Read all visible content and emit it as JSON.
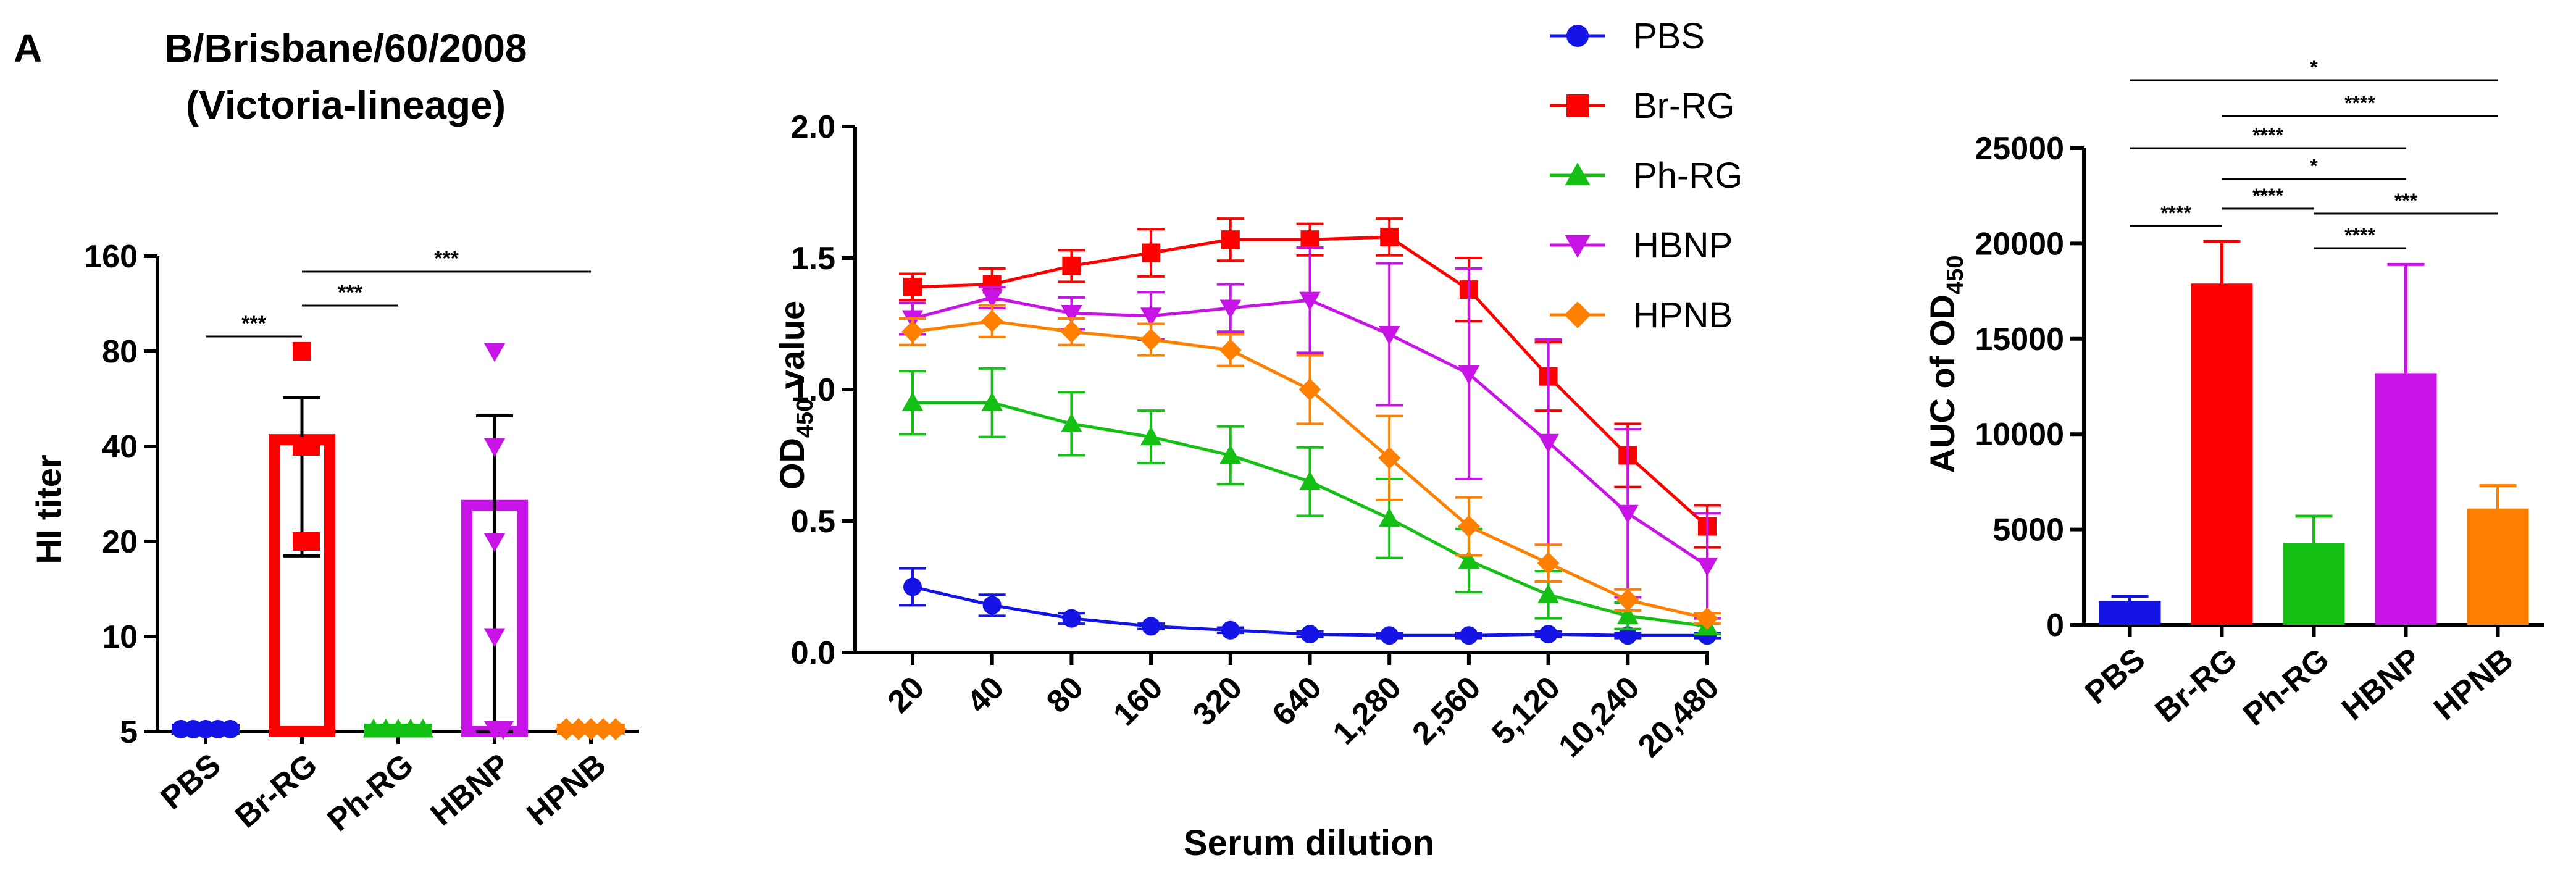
{
  "figure": {
    "panel_label": "A",
    "title_line1": "B/Brisbane/60/2008",
    "title_line2": "(Victoria-lineage)"
  },
  "groups": [
    "PBS",
    "Br-RG",
    "Ph-RG",
    "HBNP",
    "HPNB"
  ],
  "colors": {
    "PBS": "#1414e6",
    "Br-RG": "#ff0000",
    "Ph-RG": "#13c013",
    "HBNP": "#c814e6",
    "HPNB": "#ff8000"
  },
  "chart_data": [
    {
      "id": "hi-titer",
      "type": "bar",
      "ylabel": "HI titer",
      "yscale": "log2",
      "ylim": [
        5,
        160
      ],
      "yticks": [
        5,
        10,
        20,
        40,
        80,
        160
      ],
      "categories": [
        "PBS",
        "Br-RG",
        "Ph-RG",
        "HBNP",
        "HPNB"
      ],
      "values": [
        5,
        42,
        5,
        26,
        5
      ],
      "error_upper": [
        5,
        57,
        5,
        50,
        5
      ],
      "error_lower": [
        5,
        18,
        5,
        5,
        5
      ],
      "markers": [
        "circle",
        "square",
        "triangle-up",
        "triangle-down",
        "diamond"
      ],
      "points": [
        [
          5,
          5,
          5,
          5,
          5
        ],
        [
          80,
          40,
          40,
          20,
          20
        ],
        [
          5,
          5,
          5,
          5,
          5
        ],
        [
          80,
          40,
          20,
          10,
          5,
          5
        ],
        [
          5,
          5,
          5,
          5,
          5
        ]
      ],
      "significance": [
        {
          "from": "PBS",
          "to": "Br-RG",
          "label": "***"
        },
        {
          "from": "Br-RG",
          "to": "Ph-RG",
          "label": "***"
        },
        {
          "from": "Br-RG",
          "to": "HPNB",
          "label": "***"
        }
      ]
    },
    {
      "id": "od450-curve",
      "type": "line",
      "xlabel": "Serum dilution",
      "ylabel_main": "OD",
      "ylabel_sub": "450",
      "ylabel_suffix": " value",
      "ylim": [
        0,
        2
      ],
      "yticks": [
        "0.0",
        "0.5",
        "1.0",
        "1.5",
        "2.0"
      ],
      "categories": [
        "20",
        "40",
        "80",
        "160",
        "320",
        "640",
        "1,280",
        "2,560",
        "5,120",
        "10,240",
        "20,480"
      ],
      "series": [
        {
          "name": "PBS",
          "marker": "circle",
          "values": [
            0.25,
            0.18,
            0.13,
            0.1,
            0.085,
            0.07,
            0.065,
            0.065,
            0.07,
            0.065,
            0.065
          ],
          "errors": [
            0.07,
            0.04,
            0.02,
            0.01,
            0.01,
            0.01,
            0.01,
            0.01,
            0.01,
            0.01,
            0.01
          ]
        },
        {
          "name": "Br-RG",
          "marker": "square",
          "values": [
            1.39,
            1.4,
            1.47,
            1.52,
            1.57,
            1.57,
            1.58,
            1.38,
            1.05,
            0.75,
            0.48
          ],
          "errors": [
            0.05,
            0.06,
            0.06,
            0.09,
            0.08,
            0.06,
            0.07,
            0.12,
            0.13,
            0.12,
            0.08
          ]
        },
        {
          "name": "Ph-RG",
          "marker": "triangle-up",
          "values": [
            0.95,
            0.95,
            0.87,
            0.82,
            0.75,
            0.65,
            0.51,
            0.35,
            0.22,
            0.14,
            0.1
          ],
          "errors": [
            0.12,
            0.13,
            0.12,
            0.1,
            0.11,
            0.13,
            0.15,
            0.12,
            0.09,
            0.05,
            0.03
          ]
        },
        {
          "name": "HBNP",
          "marker": "triangle-down",
          "values": [
            1.27,
            1.35,
            1.29,
            1.28,
            1.31,
            1.34,
            1.21,
            1.06,
            0.8,
            0.53,
            0.33
          ],
          "errors": [
            0.06,
            0.04,
            0.06,
            0.09,
            0.09,
            0.2,
            0.27,
            0.4,
            0.39,
            0.32,
            0.2
          ]
        },
        {
          "name": "HPNB",
          "marker": "diamond",
          "values": [
            1.22,
            1.26,
            1.22,
            1.19,
            1.15,
            1.0,
            0.74,
            0.48,
            0.34,
            0.2,
            0.13
          ],
          "errors": [
            0.05,
            0.06,
            0.05,
            0.06,
            0.06,
            0.13,
            0.16,
            0.11,
            0.07,
            0.04,
            0.02
          ]
        }
      ]
    },
    {
      "id": "auc",
      "type": "bar",
      "ylabel_main": "AUC of OD",
      "ylabel_sub": "450",
      "ylim": [
        0,
        25000
      ],
      "yticks": [
        "0",
        "5000",
        "10000",
        "15000",
        "20000",
        "25000"
      ],
      "categories": [
        "PBS",
        "Br-RG",
        "Ph-RG",
        "HBNP",
        "HPNB"
      ],
      "values": [
        1250,
        17900,
        4300,
        13200,
        6100
      ],
      "errors": [
        250,
        2200,
        1400,
        5700,
        1200
      ],
      "significance": [
        {
          "from": "PBS",
          "to": "HPNB",
          "label": "*"
        },
        {
          "from": "Br-RG",
          "to": "HPNB",
          "label": "****"
        },
        {
          "from": "PBS",
          "to": "HBNP",
          "label": "****"
        },
        {
          "from": "Br-RG",
          "to": "HBNP",
          "label": "*"
        },
        {
          "from": "Ph-RG",
          "to": "HPNB",
          "label": "***"
        },
        {
          "from": "PBS",
          "to": "Br-RG",
          "label": "****"
        },
        {
          "from": "Br-RG",
          "to": "Ph-RG",
          "label": "****"
        },
        {
          "from": "Ph-RG",
          "to": "HBNP",
          "label": "****"
        }
      ]
    }
  ]
}
